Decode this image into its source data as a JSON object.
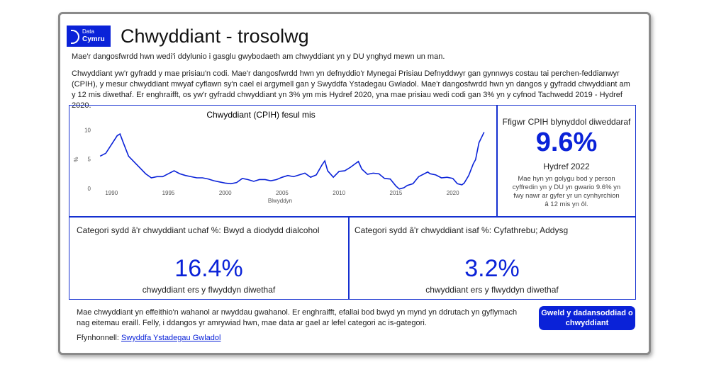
{
  "header": {
    "logo": {
      "line1": "Data",
      "line2": "Cymru"
    },
    "title": "Chwyddiant - trosolwg",
    "subtitle": "Mae'r dangosfwrdd hwn wedi'i ddylunio i gasglu gwybodaeth am chwyddiant yn y DU ynghyd mewn un man."
  },
  "intro": "Chwyddiant yw'r gyfradd y mae prisiau'n codi. Mae'r dangosfwrdd hwn yn defnyddio'r Mynegai Prisiau Defnyddwyr gan gynnwys costau tai perchen-feddianwyr (CPIH), y mesur chwyddiant mwyaf cyflawn sy'n cael ei argymell gan y Swyddfa Ystadegau Gwladol. Mae'r dangosfwrdd hwn yn dangos y gyfradd chwyddiant am y 12 mis diwethaf. Er enghraifft, os yw'r gyfradd chwyddiant yn 3% ym mis Hydref 2020, yna mae prisiau wedi codi gan 3% yn y cyfnod Tachwedd 2019 - Hydref 2020.",
  "chart_data": {
    "type": "line",
    "title": "Chwyddiant (CPIH) fesul mis",
    "x_label": "Blwyddyn",
    "y_label": "%",
    "x": [
      1989.0,
      1989.5,
      1990.0,
      1990.5,
      1990.75,
      1991.0,
      1991.5,
      1992.0,
      1992.5,
      1993.0,
      1993.5,
      1994.0,
      1994.5,
      1995.0,
      1995.5,
      1996.0,
      1996.5,
      1997.0,
      1997.5,
      1998.0,
      1998.5,
      1999.0,
      1999.5,
      2000.0,
      2000.5,
      2001.0,
      2001.5,
      2002.0,
      2002.5,
      2003.0,
      2003.5,
      2004.0,
      2004.5,
      2005.0,
      2005.5,
      2006.0,
      2006.5,
      2007.0,
      2007.5,
      2008.0,
      2008.5,
      2008.75,
      2009.0,
      2009.5,
      2010.0,
      2010.5,
      2011.0,
      2011.7,
      2012.0,
      2012.5,
      2013.0,
      2013.5,
      2014.0,
      2014.5,
      2015.0,
      2015.3,
      2015.7,
      2016.0,
      2016.5,
      2017.0,
      2017.8,
      2018.0,
      2018.5,
      2019.0,
      2019.5,
      2020.0,
      2020.4,
      2020.8,
      2021.0,
      2021.4,
      2021.8,
      2022.0,
      2022.3,
      2022.5,
      2022.75
    ],
    "series": [
      {
        "name": "CPIH",
        "color": "#0a22d8",
        "values": [
          5.5,
          6.0,
          7.5,
          9.0,
          9.3,
          8.0,
          5.5,
          4.5,
          3.5,
          2.5,
          1.8,
          2.0,
          2.0,
          2.5,
          3.0,
          2.5,
          2.2,
          2.0,
          1.8,
          1.8,
          1.6,
          1.3,
          1.1,
          0.9,
          0.8,
          1.0,
          1.7,
          1.5,
          1.2,
          1.5,
          1.5,
          1.3,
          1.5,
          1.9,
          2.2,
          2.0,
          2.3,
          2.6,
          1.9,
          2.3,
          4.0,
          4.7,
          3.0,
          1.9,
          2.9,
          3.0,
          3.6,
          4.6,
          3.3,
          2.4,
          2.6,
          2.5,
          1.7,
          1.6,
          0.4,
          -0.1,
          0.1,
          0.5,
          0.8,
          2.0,
          2.8,
          2.5,
          2.3,
          1.8,
          1.9,
          1.7,
          0.8,
          0.6,
          0.9,
          2.2,
          4.2,
          4.9,
          7.8,
          8.6,
          9.6
        ]
      }
    ],
    "xlim": [
      1988.8,
      2023.2
    ],
    "ylim": [
      -0.5,
      11
    ],
    "xticks": [
      1990,
      1995,
      2000,
      2005,
      2010,
      2015,
      2020
    ],
    "yticks": [
      0,
      5,
      10
    ],
    "grid": false
  },
  "kpi": {
    "title": "Ffigwr CPIH blynyddol diweddaraf",
    "value": "9.6%",
    "period": "Hydref 2022",
    "note": "Mae hyn yn golygu bod y person cyffredin yn y DU yn gwario 9.6% yn fwy nawr ar gyfer yr un cynhyrchion â 12 mis yn ôl."
  },
  "highest": {
    "title": "Categori sydd â'r chwyddiant uchaf %: Bwyd a diodydd dialcohol",
    "value": "16.4%",
    "caption": "chwyddiant ers y flwyddyn diwethaf"
  },
  "lowest": {
    "title": "Categori sydd â'r chwyddiant isaf %: Cyfathrebu; Addysg",
    "value": "3.2%",
    "caption": "chwyddiant ers y flwyddyn diwethaf"
  },
  "footer": {
    "text": "Mae chwyddiant yn effeithio'n wahanol ar nwyddau gwahanol. Er enghraifft, efallai bod bwyd yn mynd yn ddrutach yn gyflymach nag eitemau eraill. Felly, i ddangos yr amrywiad hwn, mae data ar gael ar lefel categori ac is-gategori.",
    "source_label": "Ffynhonnell:",
    "source_link": "Swyddfa Ystadegau Gwladol"
  },
  "button": "Gweld y dadansoddiad o chwyddiant"
}
